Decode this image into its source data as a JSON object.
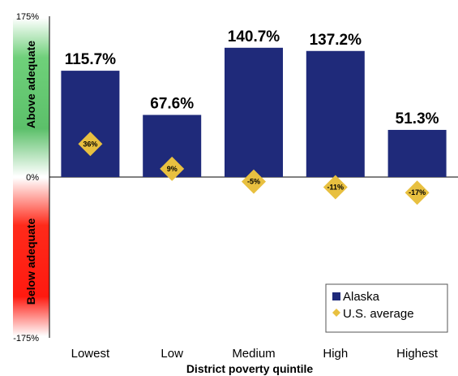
{
  "chart_data": {
    "type": "bar",
    "title": "",
    "xlabel": "District poverty quintile",
    "ylabel": "",
    "ylim": [
      -175,
      175
    ],
    "y_ticks": [
      "175%",
      "0%",
      "-175%"
    ],
    "categories": [
      "Lowest",
      "Low",
      "Medium",
      "High",
      "Highest"
    ],
    "series": [
      {
        "name": "Alaska",
        "type": "bar",
        "color": "#1f2a7a",
        "values": [
          115.7,
          67.6,
          140.7,
          137.2,
          51.3
        ],
        "labels": [
          "115.7%",
          "67.6%",
          "140.7%",
          "137.2%",
          "51.3%"
        ]
      },
      {
        "name": "U.S. average",
        "type": "marker",
        "marker": "diamond",
        "color": "#e8c040",
        "values": [
          36,
          9,
          -5,
          -11,
          -17
        ],
        "labels": [
          "36%",
          "9%",
          "-5%",
          "-11%",
          "-17%"
        ]
      }
    ],
    "bands": {
      "above": "Above adequate",
      "below": "Below adequate"
    },
    "legend": {
      "position": "bottom-right",
      "entries": [
        "Alaska",
        "U.S. average"
      ]
    },
    "grid": false
  }
}
